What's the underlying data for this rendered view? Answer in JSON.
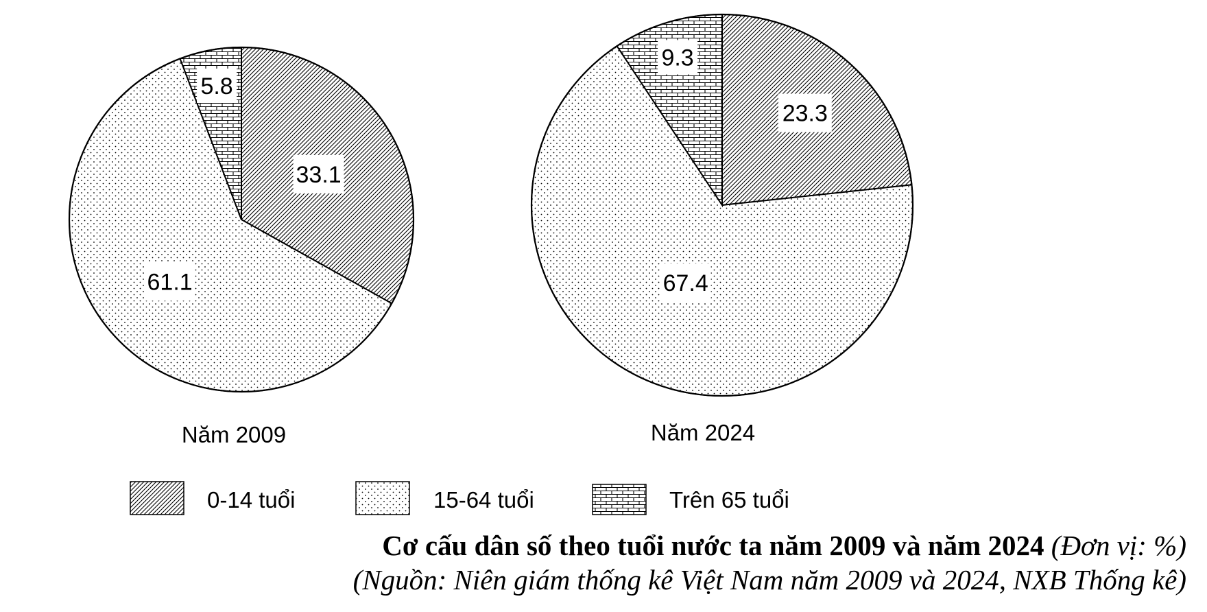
{
  "chart_data": {
    "type": "pie",
    "title": "Cơ cấu dân số theo tuổi nước ta năm 2009 và năm 2024",
    "unit": "(Đơn vị: %)",
    "source": "(Nguồn: Niên giám thống kê Việt Nam năm 2009 và 2024, NXB Thống kê)",
    "categories": [
      "0-14 tuổi",
      "15-64 tuổi",
      "Trên 65 tuổi"
    ],
    "series": [
      {
        "name": "Năm 2009",
        "values": [
          33.1,
          61.1,
          5.8
        ]
      },
      {
        "name": "Năm 2024",
        "values": [
          23.3,
          67.4,
          9.3
        ]
      }
    ],
    "legend": {
      "placement": "bottom",
      "items": [
        {
          "label": "0-14 tuổi",
          "pattern": "diagonal-hatch"
        },
        {
          "label": "15-64 tuổi",
          "pattern": "dots"
        },
        {
          "label": "Trên 65 tuổi",
          "pattern": "brick"
        }
      ]
    },
    "colors": {
      "ink": "#000000",
      "background": "#ffffff"
    }
  }
}
